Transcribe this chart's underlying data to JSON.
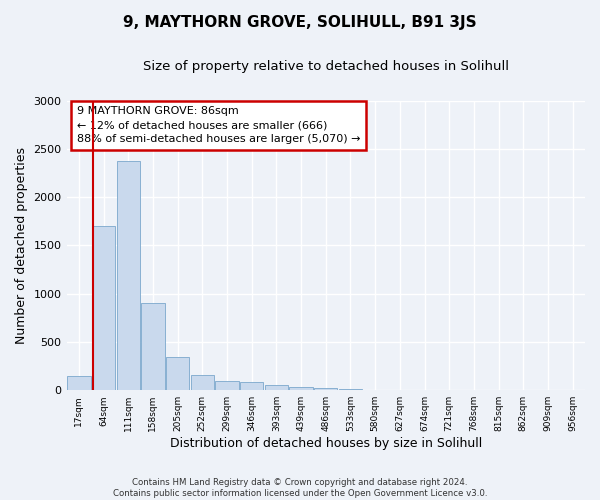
{
  "title_main": "9, MAYTHORN GROVE, SOLIHULL, B91 3JS",
  "title_sub": "Size of property relative to detached houses in Solihull",
  "xlabel": "Distribution of detached houses by size in Solihull",
  "ylabel": "Number of detached properties",
  "footnote": "Contains HM Land Registry data © Crown copyright and database right 2024.\nContains public sector information licensed under the Open Government Licence v3.0.",
  "bar_labels": [
    "17sqm",
    "64sqm",
    "111sqm",
    "158sqm",
    "205sqm",
    "252sqm",
    "299sqm",
    "346sqm",
    "393sqm",
    "439sqm",
    "486sqm",
    "533sqm",
    "580sqm",
    "627sqm",
    "674sqm",
    "721sqm",
    "768sqm",
    "815sqm",
    "862sqm",
    "909sqm",
    "956sqm"
  ],
  "bar_values": [
    150,
    1700,
    2370,
    900,
    340,
    160,
    100,
    80,
    50,
    35,
    20,
    10,
    5,
    2,
    1,
    0,
    0,
    0,
    0,
    0,
    0
  ],
  "bar_color": "#c9d9ed",
  "bar_edge_color": "#7ba7cc",
  "vline_color": "#cc0000",
  "vline_pos": 0.575,
  "annotation_text": "9 MAYTHORN GROVE: 86sqm\n← 12% of detached houses are smaller (666)\n88% of semi-detached houses are larger (5,070) →",
  "annotation_box_color": "#ffffff",
  "annotation_box_edge": "#cc0000",
  "ylim": [
    0,
    3000
  ],
  "yticks": [
    0,
    500,
    1000,
    1500,
    2000,
    2500,
    3000
  ],
  "bg_color": "#eef2f8",
  "plot_bg_color": "#eef2f8",
  "grid_color": "#ffffff",
  "title_main_fontsize": 11,
  "title_sub_fontsize": 9.5
}
